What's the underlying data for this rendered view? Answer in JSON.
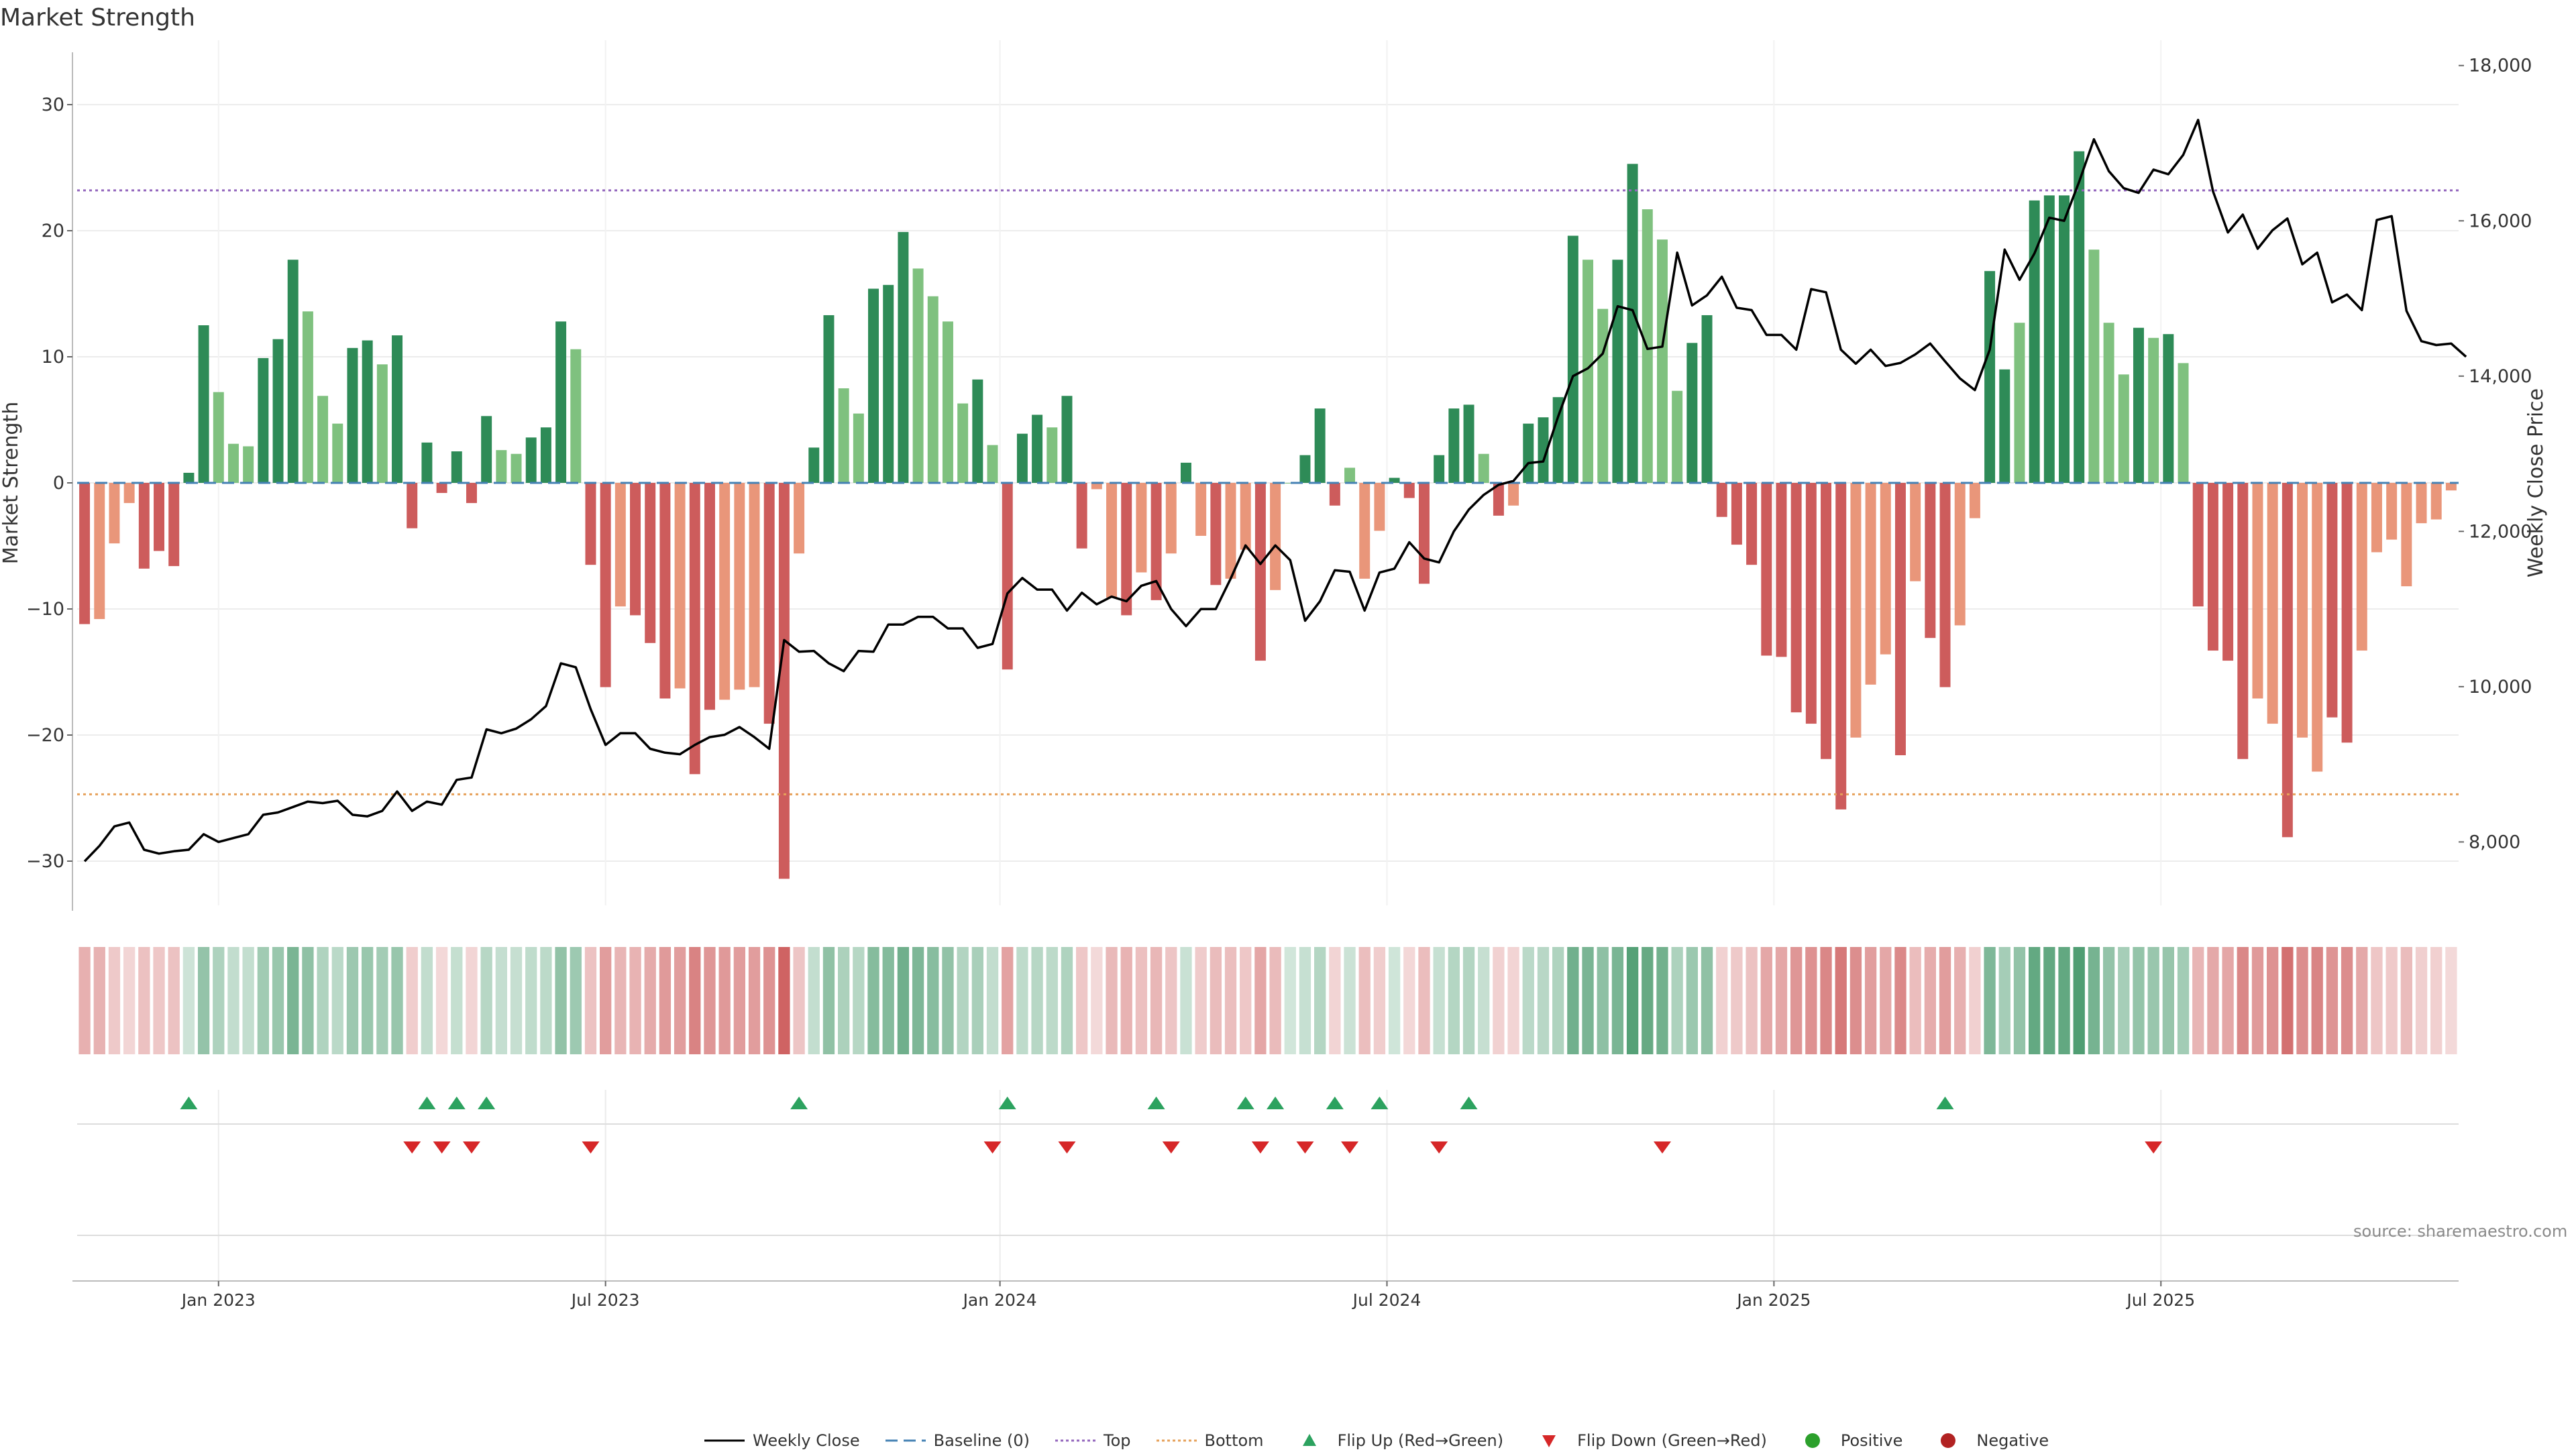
{
  "title": "Market Strength",
  "source": "source: sharemaestro.com",
  "colors": {
    "strong_green": "#2e8b57",
    "light_green": "#7fc17f",
    "strong_red": "#cd5c5c",
    "light_red": "#e9967a",
    "price_line": "#000000",
    "baseline": "#4682b4",
    "top": "#9467bd",
    "bottom": "#e6a15a",
    "flip_up": "#2ca25f",
    "flip_down": "#d62728",
    "positive": "#2ca02c",
    "negative": "#b22222"
  },
  "legend": {
    "weekly_close": "Weekly Close",
    "baseline": "Baseline (0)",
    "top": "Top",
    "bottom": "Bottom",
    "flip_up": "Flip Up (Red→Green)",
    "flip_down": "Flip Down (Green→Red)",
    "positive": "Positive",
    "negative": "Negative"
  },
  "chart_data": {
    "type": "bar",
    "title": "Market Strength",
    "ylabel": "Market Strength",
    "y2label": "Weekly Close Price",
    "ylim": [
      -34,
      34
    ],
    "y_ticks": [
      -30,
      -20,
      -10,
      0,
      10,
      20,
      30
    ],
    "y2lim": [
      7200,
      18300
    ],
    "y2_ticks": [
      8000,
      10000,
      12000,
      14000,
      16000,
      18000
    ],
    "y2_tick_labels": [
      "8,000",
      "10,000",
      "12,000",
      "14,000",
      "16,000",
      "18,000"
    ],
    "x_start": "2022-10-30",
    "x_end": "2025-09-28",
    "x_ticks": [
      {
        "label": "Jan 2023",
        "week": 9
      },
      {
        "label": "Jul 2023",
        "week": 35
      },
      {
        "label": "Jan 2024",
        "week": 61.5
      },
      {
        "label": "Jul 2024",
        "week": 87.5
      },
      {
        "label": "Jan 2025",
        "week": 113.5
      },
      {
        "label": "Jul 2025",
        "week": 139.5
      }
    ],
    "top_line": 23.2,
    "bottom_line": -24.7,
    "legend_position": "bottom",
    "strength": [
      -11.2,
      -10.8,
      -4.8,
      -1.6,
      -6.8,
      -5.4,
      -6.6,
      0.8,
      12.5,
      7.2,
      3.1,
      2.9,
      9.9,
      11.4,
      17.7,
      13.6,
      6.9,
      4.7,
      10.7,
      11.3,
      9.4,
      11.7,
      -3.6,
      3.2,
      -0.8,
      2.5,
      -1.6,
      5.3,
      2.6,
      2.3,
      3.6,
      4.4,
      12.8,
      10.6,
      -6.5,
      -16.2,
      -9.8,
      -10.5,
      -12.7,
      -17.1,
      -16.3,
      -23.1,
      -18,
      -17.2,
      -16.4,
      -16.2,
      -19.1,
      -31.4,
      -5.6,
      2.8,
      13.3,
      7.5,
      5.5,
      15.4,
      15.7,
      19.9,
      17,
      14.8,
      12.8,
      6.3,
      8.2,
      3,
      -14.8,
      3.9,
      5.4,
      4.4,
      6.9,
      -5.2,
      -0.5,
      -9.1,
      -10.5,
      -7.1,
      -9.3,
      -5.6,
      1.6,
      -4.2,
      -8.1,
      -7.6,
      -5.3,
      -14.1,
      -8.5,
      0,
      2.2,
      5.9,
      -1.8,
      1.2,
      -7.6,
      -3.8,
      0.4,
      -1.2,
      -8,
      2.2,
      5.9,
      6.2,
      2.3,
      -2.6,
      -1.8,
      4.7,
      5.2,
      6.8,
      19.6,
      17.7,
      13.8,
      17.7,
      25.3,
      21.7,
      19.3,
      7.3,
      11.1,
      13.3,
      -2.7,
      -4.9,
      -6.5,
      -13.7,
      -13.8,
      -18.2,
      -19.1,
      -21.9,
      -25.9,
      -20.2,
      -16,
      -13.6,
      -21.6,
      -7.8,
      -12.3,
      -16.2,
      -11.3,
      -2.8,
      16.8,
      9,
      12.7,
      22.4,
      22.8,
      22.8,
      26.3,
      18.5,
      12.7,
      8.6,
      12.3,
      11.5,
      11.8,
      9.5,
      -9.8,
      -13.3,
      -14.1,
      -21.9,
      -17.1,
      -19.1,
      -28.1,
      -20.2,
      -22.9,
      -18.6,
      -20.6,
      -13.3,
      -5.5,
      -4.5,
      -8.2,
      -3.2,
      -2.9,
      -0.6
    ],
    "shade": [
      1,
      0,
      0,
      0,
      1,
      1,
      1,
      1,
      1,
      0,
      0,
      0,
      1,
      1,
      1,
      0,
      0,
      0,
      1,
      1,
      0,
      1,
      1,
      1,
      1,
      1,
      1,
      1,
      0,
      0,
      1,
      1,
      1,
      0,
      1,
      1,
      0,
      1,
      1,
      1,
      0,
      1,
      1,
      0,
      0,
      0,
      1,
      1,
      0,
      1,
      1,
      0,
      0,
      1,
      1,
      1,
      0,
      0,
      0,
      0,
      1,
      0,
      1,
      1,
      1,
      0,
      1,
      1,
      0,
      0,
      1,
      0,
      1,
      0,
      1,
      0,
      1,
      0,
      0,
      1,
      0,
      0,
      1,
      1,
      1,
      0,
      0,
      0,
      1,
      1,
      1,
      1,
      1,
      1,
      0,
      1,
      0,
      1,
      1,
      1,
      1,
      0,
      0,
      1,
      1,
      0,
      0,
      0,
      1,
      1,
      1,
      1,
      1,
      1,
      1,
      1,
      1,
      1,
      1,
      0,
      0,
      0,
      1,
      0,
      1,
      1,
      0,
      0,
      1,
      1,
      0,
      1,
      1,
      1,
      1,
      0,
      0,
      0,
      1,
      0,
      1,
      0,
      1,
      1,
      1,
      1,
      0,
      0,
      1,
      0,
      0,
      1,
      1,
      0,
      0,
      0,
      0,
      0,
      0,
      0
    ],
    "price": [
      7750,
      7950,
      8200,
      8250,
      7900,
      7850,
      7880,
      7900,
      8100,
      8000,
      8050,
      8100,
      8350,
      8380,
      8450,
      8520,
      8500,
      8530,
      8350,
      8330,
      8400,
      8650,
      8400,
      8520,
      8480,
      8800,
      8830,
      9450,
      9400,
      9460,
      9580,
      9750,
      10300,
      10250,
      9710,
      9250,
      9400,
      9400,
      9200,
      9150,
      9130,
      9250,
      9350,
      9380,
      9480,
      9350,
      9200,
      10600,
      10450,
      10460,
      10300,
      10200,
      10460,
      10450,
      10800,
      10800,
      10900,
      10900,
      10750,
      10750,
      10500,
      10550,
      11200,
      11400,
      11250,
      11250,
      10980,
      11210,
      11060,
      11160,
      11100,
      11300,
      11360,
      11000,
      10780,
      11000,
      11000,
      11390,
      11820,
      11580,
      11820,
      11630,
      10850,
      11100,
      11500,
      11480,
      10980,
      11470,
      11520,
      11860,
      11650,
      11600,
      12000,
      12280,
      12470,
      12600,
      12650,
      12880,
      12900,
      13480,
      14000,
      14100,
      14290,
      14900,
      14850,
      14350,
      14380,
      15590,
      14910,
      15040,
      15280,
      14880,
      14850,
      14530,
      14530,
      14340,
      15120,
      15080,
      14340,
      14160,
      14340,
      14130,
      14170,
      14280,
      14420,
      14190,
      13970,
      13820,
      14340,
      15630,
      15240,
      15580,
      16040,
      16000,
      16500,
      17050,
      16640,
      16420,
      16360,
      16660,
      16600,
      16850,
      17300,
      16380,
      15850,
      16080,
      15640,
      15880,
      16030,
      15440,
      15590,
      14950,
      15050,
      14850,
      16010,
      16060,
      14840,
      14450,
      14400,
      14420,
      14250
    ]
  },
  "flips": {
    "up_weeks": [
      7,
      23,
      25,
      27,
      48,
      62,
      72,
      78,
      80,
      84,
      87,
      93,
      125
    ],
    "down_weeks": [
      22,
      24,
      26,
      34,
      61,
      66,
      73,
      79,
      82,
      85,
      91,
      106,
      139
    ]
  }
}
